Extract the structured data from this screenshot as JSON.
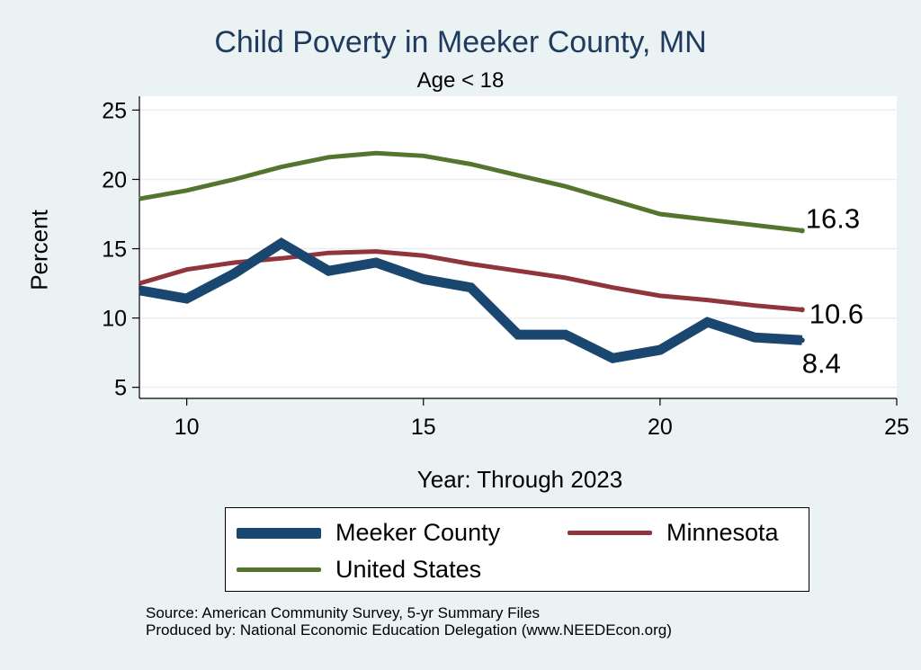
{
  "title": "Child Poverty in Meeker County, MN",
  "subtitle": "Age < 18",
  "source_line1": "Source: American Community Survey, 5-yr Summary Files",
  "source_line2": "Produced by: National Economic Education Delegation (www.NEEDEcon.org)",
  "chart_data": {
    "type": "line",
    "title": "Child Poverty in Meeker County, MN",
    "subtitle": "Age < 18",
    "xlabel": "Year: Through 2023",
    "ylabel": "Percent",
    "xlim": [
      9,
      25
    ],
    "ylim": [
      4.2,
      26
    ],
    "xticks": [
      10,
      15,
      20,
      25
    ],
    "yticks": [
      5,
      10,
      15,
      20,
      25
    ],
    "grid": true,
    "legend_position": "bottom",
    "series": [
      {
        "name": "Meeker County",
        "color": "#1a476f",
        "x": [
          9,
          10,
          11,
          12,
          13,
          14,
          15,
          16,
          17,
          18,
          19,
          20,
          21,
          22,
          23
        ],
        "values": [
          12.0,
          11.4,
          13.2,
          15.4,
          13.4,
          14.0,
          12.8,
          12.2,
          8.8,
          8.8,
          7.1,
          7.7,
          9.7,
          8.6,
          8.4
        ],
        "end_label": "8.4"
      },
      {
        "name": "Minnesota",
        "color": "#90353b",
        "x": [
          9,
          10,
          11,
          12,
          13,
          14,
          15,
          16,
          17,
          18,
          19,
          20,
          21,
          22,
          23
        ],
        "values": [
          12.5,
          13.5,
          14.0,
          14.3,
          14.7,
          14.8,
          14.5,
          13.9,
          13.4,
          12.9,
          12.2,
          11.6,
          11.3,
          10.9,
          10.6
        ],
        "end_label": "10.6"
      },
      {
        "name": "United States",
        "color": "#55752f",
        "x": [
          9,
          10,
          11,
          12,
          13,
          14,
          15,
          16,
          17,
          18,
          19,
          20,
          21,
          22,
          23
        ],
        "values": [
          18.6,
          19.2,
          20.0,
          20.9,
          21.6,
          21.9,
          21.7,
          21.1,
          20.3,
          19.5,
          18.5,
          17.5,
          17.1,
          16.7,
          16.3
        ],
        "end_label": "16.3"
      }
    ]
  }
}
